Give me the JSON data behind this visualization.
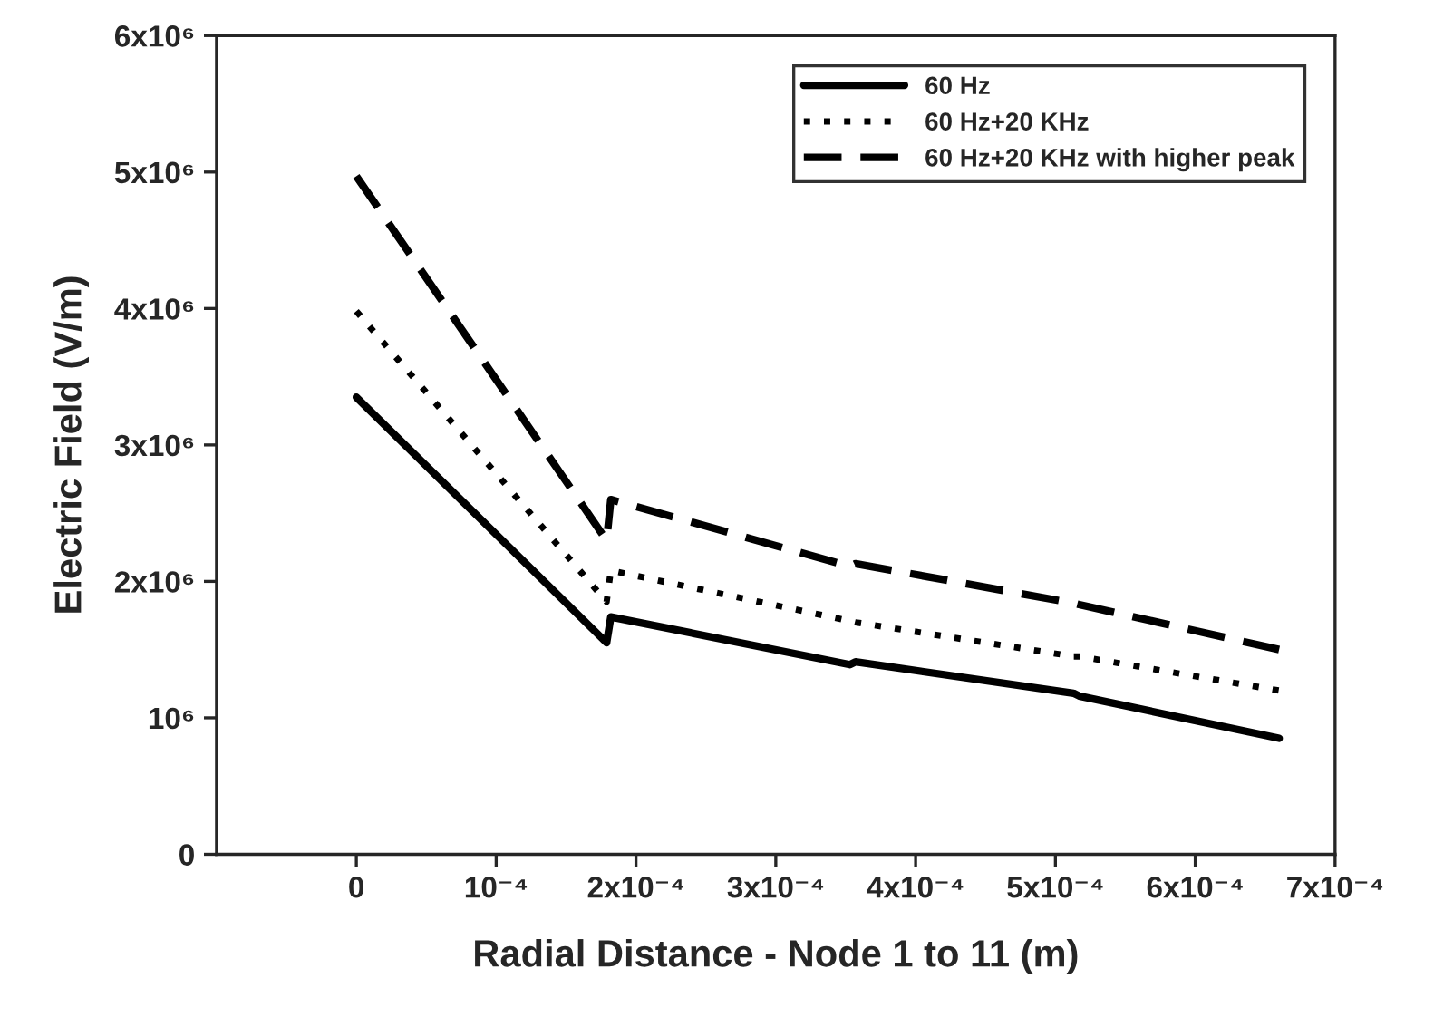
{
  "chart_data": {
    "type": "line",
    "xlabel": "Radial Distance - Node 1 to 11 (m)",
    "ylabel": "Electric Field (V/m)",
    "xlim": [
      -0.0001,
      0.0007
    ],
    "ylim": [
      0,
      6000000
    ],
    "xticks": [
      0,
      {
        "value": 0.0001,
        "label": "10⁻⁴"
      },
      {
        "value": 0.0002,
        "label": "2x10⁻⁴"
      },
      {
        "value": 0.0003,
        "label": "3x10⁻⁴"
      },
      {
        "value": 0.0004,
        "label": "4x10⁻⁴"
      },
      {
        "value": 0.0005,
        "label": "5x10⁻⁴"
      },
      {
        "value": 0.0006,
        "label": "6x10⁻⁴"
      },
      {
        "value": 0.0007,
        "label": "7x10⁻⁴"
      }
    ],
    "yticks": [
      0,
      {
        "value": 1000000,
        "label": "10⁶"
      },
      {
        "value": 2000000,
        "label": "2x10⁶"
      },
      {
        "value": 3000000,
        "label": "3x10⁶"
      },
      {
        "value": 4000000,
        "label": "4x10⁶"
      },
      {
        "value": 5000000,
        "label": "5x10⁶"
      },
      {
        "value": 6000000,
        "label": "6x10⁶"
      }
    ],
    "x": [
      0,
      0.000179,
      0.000182,
      0.000353,
      0.000357,
      0.000513,
      0.000517,
      0.00066
    ],
    "grid": false,
    "legend": "top right",
    "marker": "none",
    "series": [
      {
        "name": "60 Hz",
        "color": "#000000",
        "line_style": "solid",
        "values": [
          3350000,
          1550000,
          1740000,
          1390000,
          1410000,
          1180000,
          1160000,
          850000
        ]
      },
      {
        "name": "60 Hz+20 KHz",
        "color": "#000000",
        "line_style": "dotted",
        "values": [
          3980000,
          1850000,
          2080000,
          1710000,
          1700000,
          1450000,
          1450000,
          1200000
        ]
      },
      {
        "name": "60 Hz+20 KHz with higher peak",
        "color": "#000000",
        "line_style": "dashed",
        "values": [
          4970000,
          2300000,
          2600000,
          2110000,
          2130000,
          1840000,
          1830000,
          1500000
        ]
      }
    ]
  }
}
